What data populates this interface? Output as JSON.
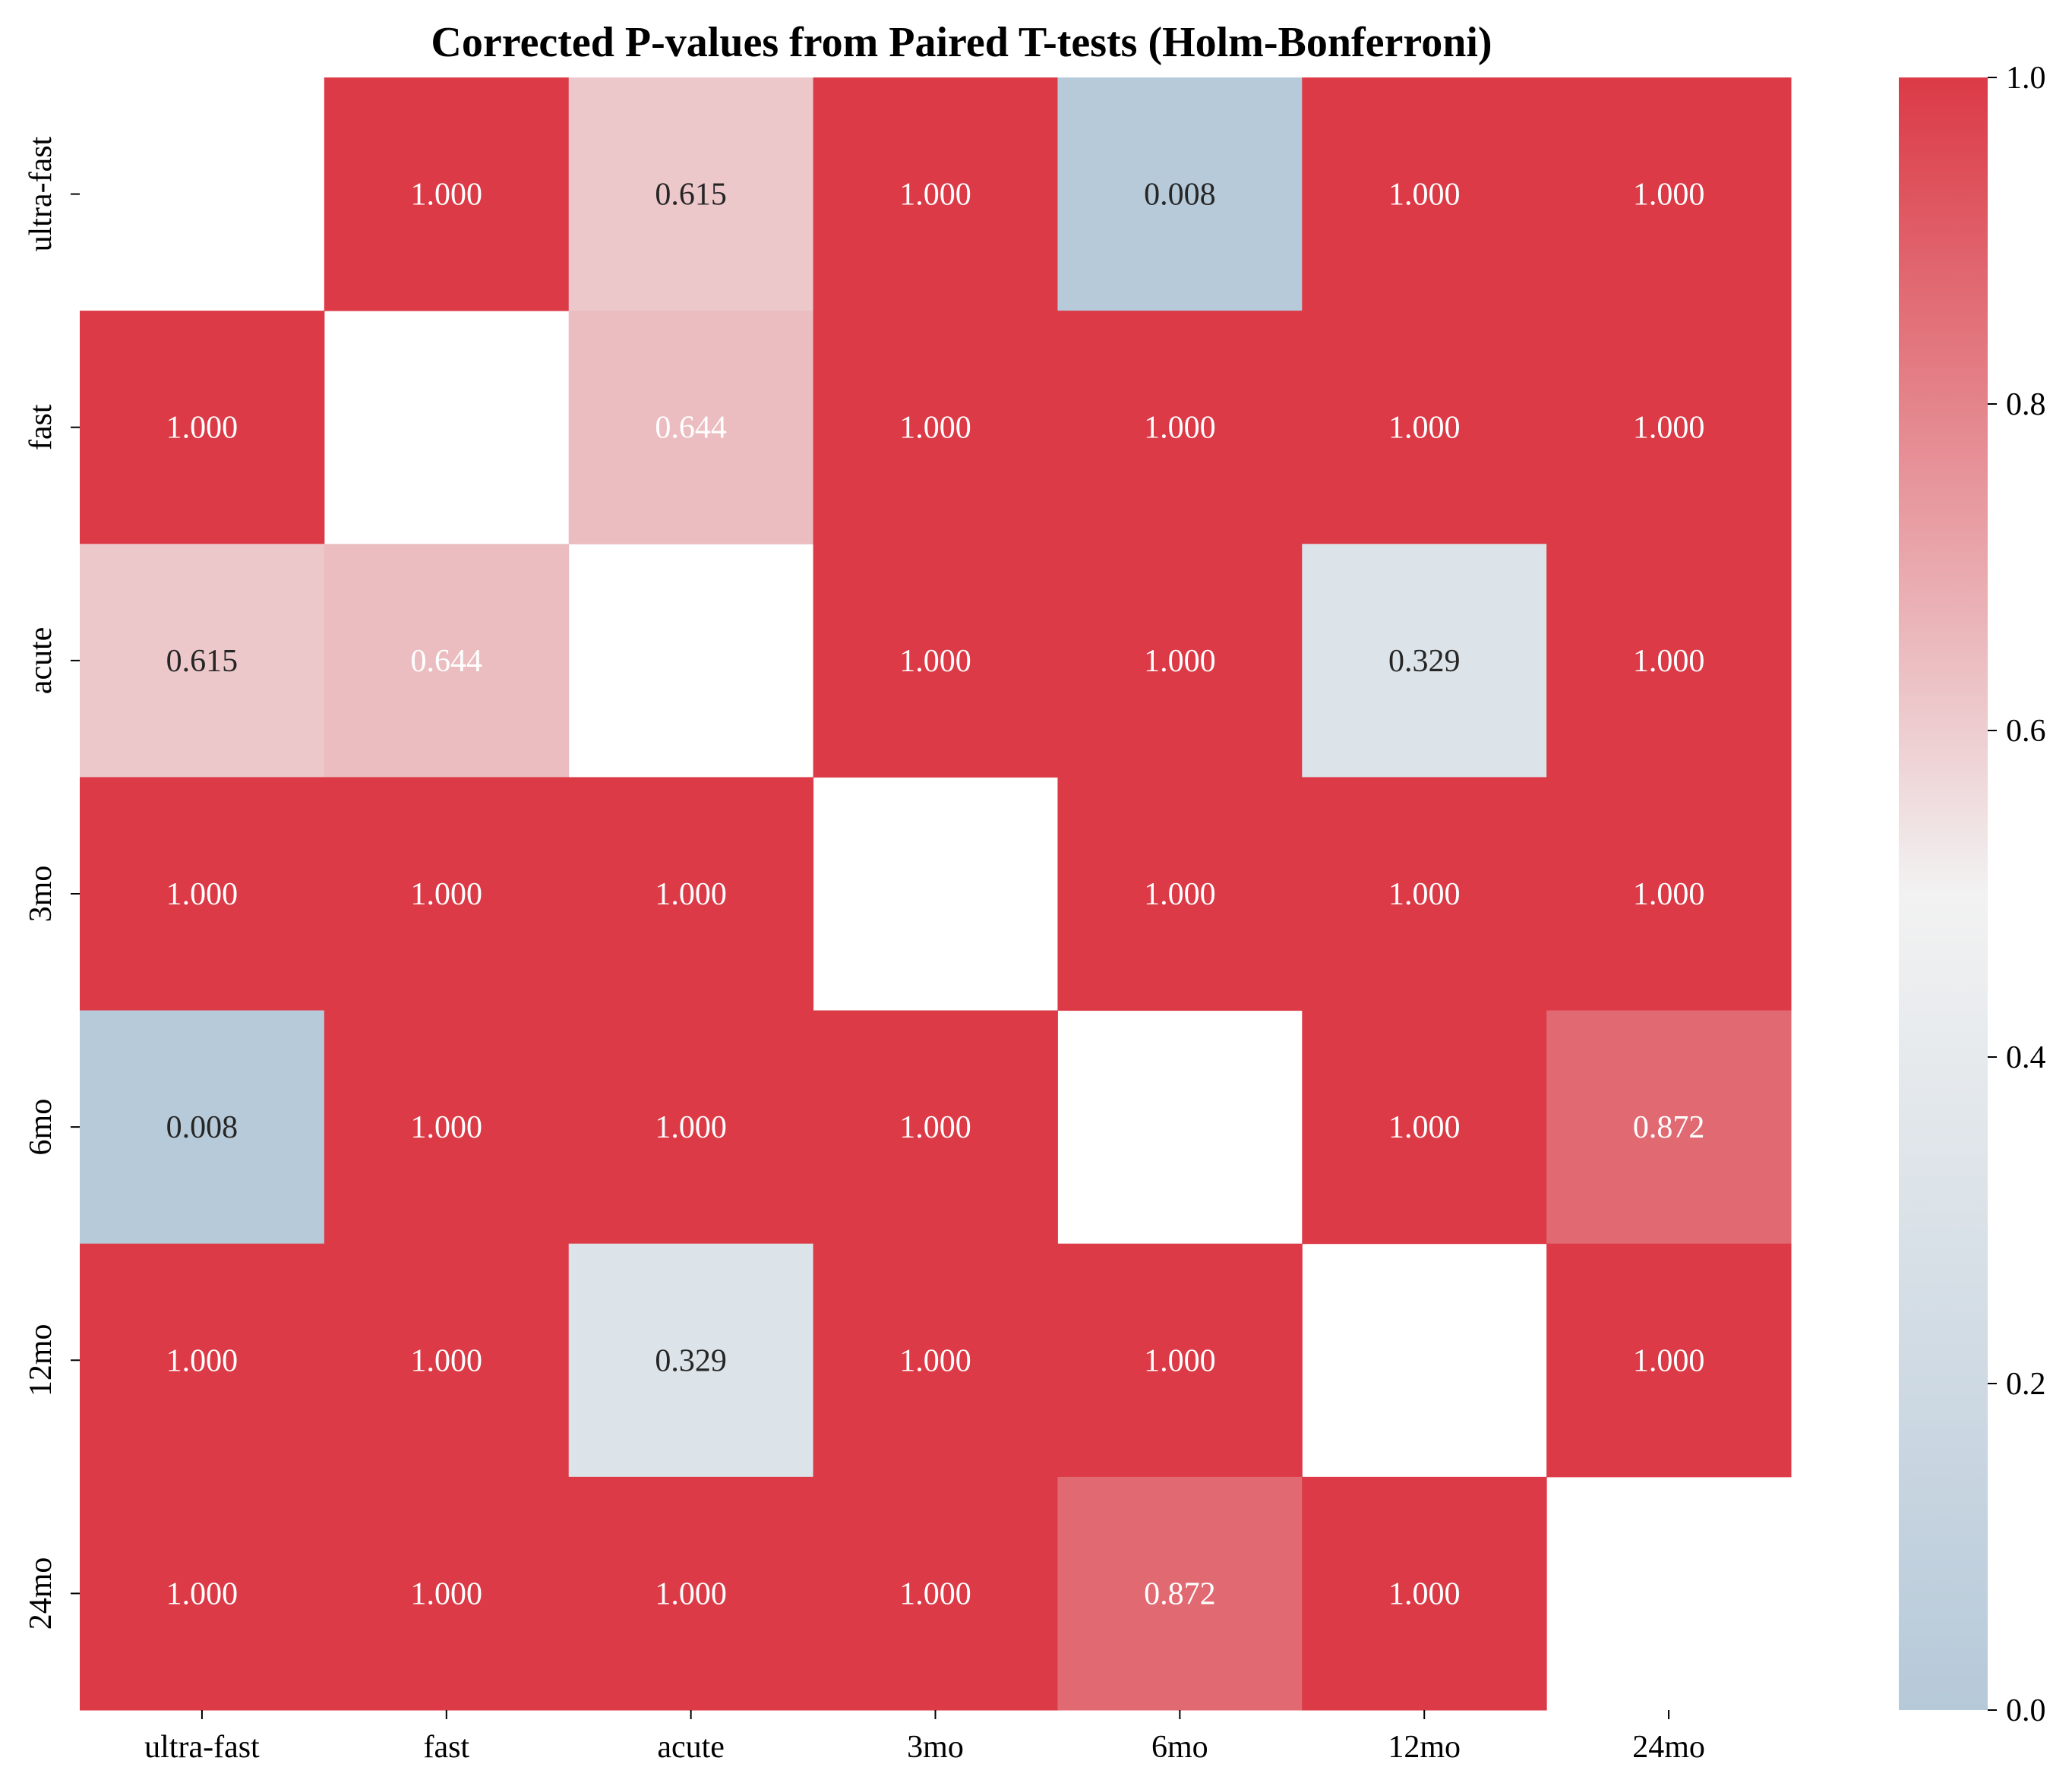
{
  "chart_data": {
    "type": "heatmap",
    "title": "Corrected P-values from Paired T-tests (Holm-Bonferroni)",
    "xlabel": "",
    "ylabel": "",
    "categories": [
      "ultra-fast",
      "fast",
      "acute",
      "3mo",
      "6mo",
      "12mo",
      "24mo"
    ],
    "values": [
      [
        null,
        1.0,
        0.615,
        1.0,
        0.008,
        1.0,
        1.0
      ],
      [
        1.0,
        null,
        0.644,
        1.0,
        1.0,
        1.0,
        1.0
      ],
      [
        0.615,
        0.644,
        null,
        1.0,
        1.0,
        0.329,
        1.0
      ],
      [
        1.0,
        1.0,
        1.0,
        null,
        1.0,
        1.0,
        1.0
      ],
      [
        0.008,
        1.0,
        1.0,
        1.0,
        null,
        1.0,
        0.872
      ],
      [
        1.0,
        1.0,
        0.329,
        1.0,
        1.0,
        null,
        1.0
      ],
      [
        1.0,
        1.0,
        1.0,
        1.0,
        0.872,
        1.0,
        null
      ]
    ],
    "value_format": "0.000",
    "colorbar": {
      "range": [
        0.0,
        1.0
      ],
      "ticks": [
        "0.0",
        "0.2",
        "0.4",
        "0.6",
        "0.8",
        "1.0"
      ],
      "low_color": "#b6c9d9",
      "mid_color": "#f2f2f2",
      "high_color": "#db3a46"
    },
    "grid": false
  }
}
